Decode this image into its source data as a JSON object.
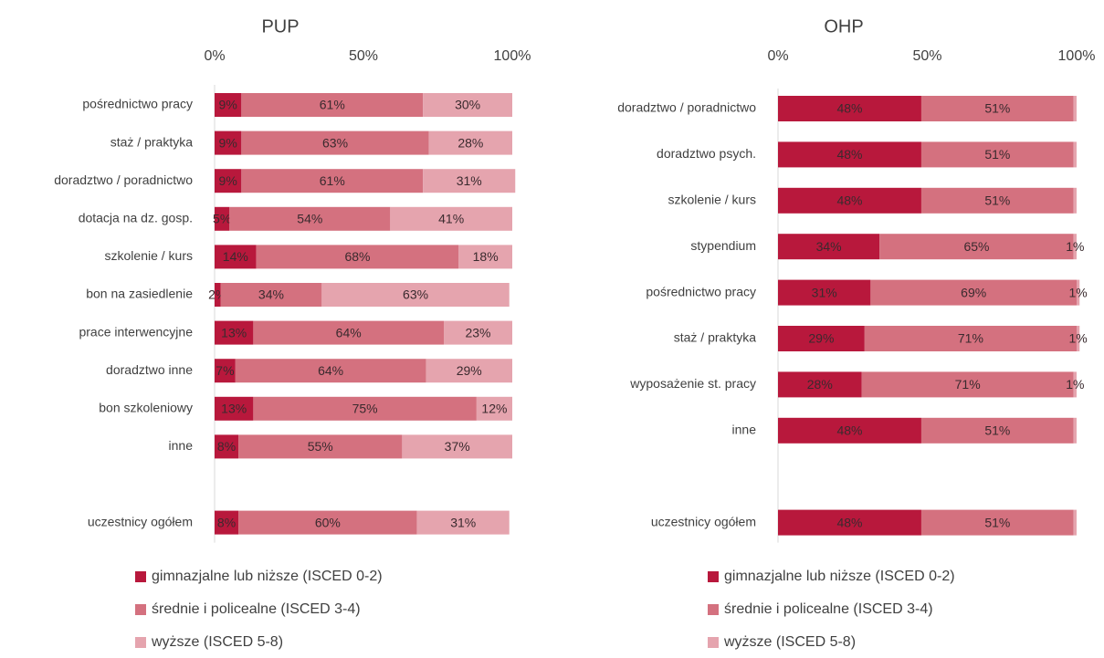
{
  "chart_data": [
    {
      "type": "stacked-barh",
      "title": "PUP",
      "categories": [
        "pośrednictwo pracy",
        "staż / praktyka",
        "doradztwo / poradnictwo",
        "dotacja na dz. gosp.",
        "szkolenie / kurs",
        "bon na zasiedlenie",
        "prace interwencyjne",
        "doradztwo inne",
        "bon szkoleniowy",
        "inne",
        null,
        "uczestnicy ogółem"
      ],
      "series": [
        {
          "name": "gimnazjalne lub niższe (ISCED 0-2)",
          "color": "#b8183c",
          "values": [
            9,
            9,
            9,
            5,
            14,
            2,
            13,
            7,
            13,
            8,
            null,
            8
          ],
          "value_labels": [
            "9%",
            "9%",
            "9%",
            "5%",
            "14%",
            "2%",
            "13%",
            "7%",
            "13%",
            "8%",
            null,
            "8%"
          ]
        },
        {
          "name": "średnie i policealne (ISCED 3-4)",
          "color": "#d4717f",
          "values": [
            61,
            63,
            61,
            54,
            68,
            34,
            64,
            64,
            75,
            55,
            null,
            60
          ],
          "value_labels": [
            "61%",
            "63%",
            "61%",
            "54%",
            "68%",
            "34%",
            "64%",
            "64%",
            "75%",
            "55%",
            null,
            "60%"
          ]
        },
        {
          "name": "wyższe (ISCED 5-8)",
          "color": "#e5a4ae",
          "values": [
            30,
            28,
            31,
            41,
            18,
            63,
            23,
            29,
            12,
            37,
            null,
            31
          ],
          "value_labels": [
            "30%",
            "28%",
            "31%",
            "41%",
            "18%",
            "63%",
            "23%",
            "29%",
            "12%",
            "37%",
            null,
            "31%"
          ]
        }
      ],
      "xlim": [
        0,
        100
      ],
      "xticks": [
        {
          "value": 0,
          "label": "0%"
        },
        {
          "value": 50,
          "label": "50%"
        },
        {
          "value": 100,
          "label": "100%"
        }
      ]
    },
    {
      "type": "stacked-barh",
      "title": "OHP",
      "categories": [
        "doradztwo / poradnictwo",
        "doradztwo psych.",
        "szkolenie / kurs",
        "stypendium",
        "pośrednictwo pracy",
        "staż / praktyka",
        "wyposażenie st. pracy",
        "inne",
        null,
        "uczestnicy ogółem"
      ],
      "series": [
        {
          "name": "gimnazjalne lub niższe (ISCED 0-2)",
          "color": "#b8183c",
          "values": [
            48,
            48,
            48,
            34,
            31,
            29,
            28,
            48,
            null,
            48
          ],
          "value_labels": [
            "48%",
            "48%",
            "48%",
            "34%",
            "31%",
            "29%",
            "28%",
            "48%",
            null,
            "48%"
          ]
        },
        {
          "name": "średnie i policealne (ISCED 3-4)",
          "color": "#d4717f",
          "values": [
            51,
            51,
            51,
            65,
            69,
            71,
            71,
            51,
            null,
            51
          ],
          "value_labels": [
            "51%",
            "51%",
            "51%",
            "65%",
            "69%",
            "71%",
            "71%",
            "51%",
            null,
            "51%"
          ]
        },
        {
          "name": "wyższe (ISCED 5-8)",
          "color": "#e5a4ae",
          "values": [
            1,
            1,
            1,
            1,
            1,
            1,
            1,
            1,
            null,
            1
          ],
          "value_labels": [
            null,
            null,
            null,
            "1%",
            "1%",
            "1%",
            "1%",
            null,
            null,
            null
          ]
        }
      ],
      "xlim": [
        0,
        100
      ],
      "xticks": [
        {
          "value": 0,
          "label": "0%"
        },
        {
          "value": 50,
          "label": "50%"
        },
        {
          "value": 100,
          "label": "100%"
        }
      ]
    }
  ]
}
